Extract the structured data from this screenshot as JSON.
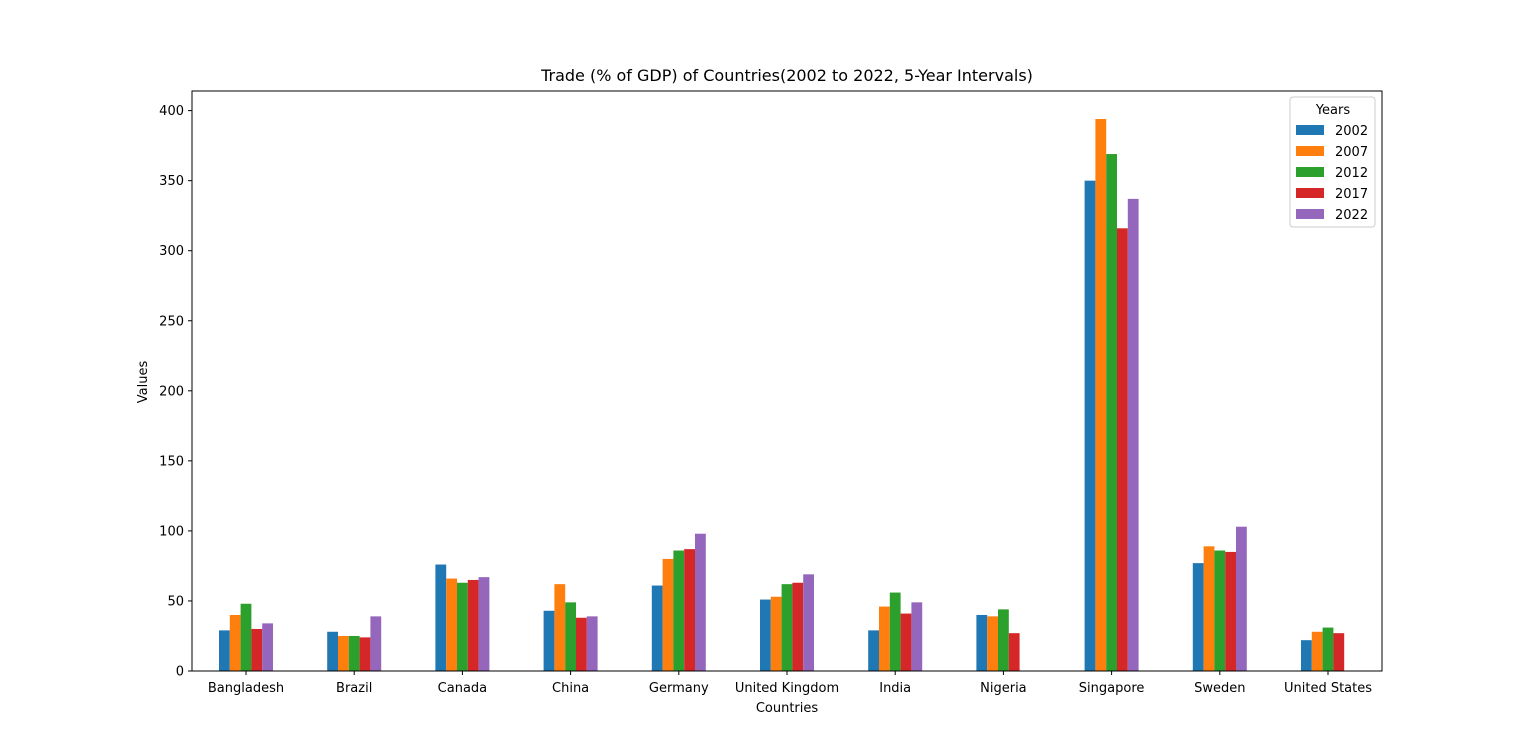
{
  "chart_data": {
    "type": "bar",
    "title": "Trade (% of GDP) of Countries(2002 to 2022, 5-Year Intervals)",
    "xlabel": "Countries",
    "ylabel": "Values",
    "ylim": [
      0,
      414
    ],
    "yticks": [
      0,
      50,
      100,
      150,
      200,
      250,
      300,
      350,
      400
    ],
    "grid": false,
    "legend": {
      "title": "Years",
      "placement": "top-right"
    },
    "categories": [
      "Bangladesh",
      "Brazil",
      "Canada",
      "China",
      "Germany",
      "United Kingdom",
      "India",
      "Nigeria",
      "Singapore",
      "Sweden",
      "United States"
    ],
    "series": [
      {
        "name": "2002",
        "color": "#1f77b4",
        "values": [
          29,
          28,
          76,
          43,
          61,
          51,
          29,
          40,
          350,
          77,
          22
        ]
      },
      {
        "name": "2007",
        "color": "#ff7f0e",
        "values": [
          40,
          25,
          66,
          62,
          80,
          53,
          46,
          39,
          394,
          89,
          28
        ]
      },
      {
        "name": "2012",
        "color": "#2ca02c",
        "values": [
          48,
          25,
          63,
          49,
          86,
          62,
          56,
          44,
          369,
          86,
          31
        ]
      },
      {
        "name": "2017",
        "color": "#d62728",
        "values": [
          30,
          24,
          65,
          38,
          87,
          63,
          41,
          27,
          316,
          85,
          27
        ]
      },
      {
        "name": "2022",
        "color": "#9467bd",
        "values": [
          34,
          39,
          67,
          39,
          98,
          69,
          49,
          0,
          337,
          103,
          0
        ]
      }
    ]
  }
}
